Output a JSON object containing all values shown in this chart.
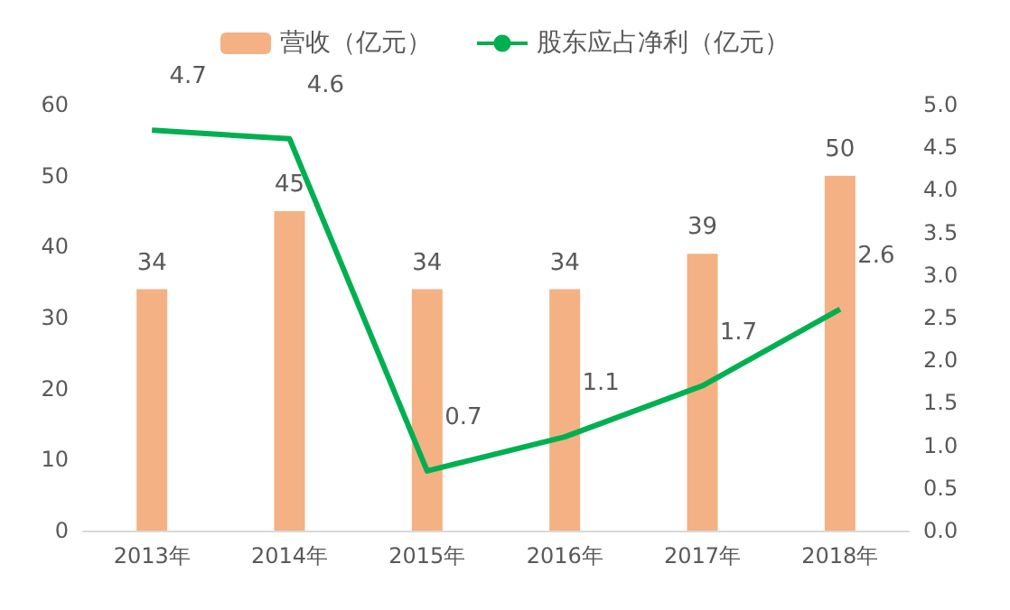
{
  "chart_data": {
    "type": "bar",
    "categories": [
      "2013年",
      "2014年",
      "2015年",
      "2016年",
      "2017年",
      "2018年"
    ],
    "series": [
      {
        "name": "营收（亿元）",
        "color": "#f4b183",
        "values": [
          34,
          45,
          34,
          34,
          39,
          50
        ]
      },
      {
        "name": "股东应占净利（亿元）",
        "type": "line",
        "axis": "y2",
        "color": "#00b050",
        "values": [
          4.7,
          4.6,
          0.7,
          1.1,
          1.7,
          2.6
        ]
      }
    ],
    "ylim": [
      0,
      60
    ],
    "yticks": [
      0,
      10,
      20,
      30,
      40,
      50,
      60
    ],
    "y2lim": [
      0,
      5
    ],
    "y2ticks": [
      {
        "value": 0,
        "label": "0.0"
      },
      {
        "value": 0.5,
        "label": "0.5"
      },
      {
        "value": 1,
        "label": "1.0"
      },
      {
        "value": 1.5,
        "label": "1.5"
      },
      {
        "value": 2,
        "label": "2.0"
      },
      {
        "value": 2.5,
        "label": "2.5"
      },
      {
        "value": 3,
        "label": "3.0"
      },
      {
        "value": 3.5,
        "label": "3.5"
      },
      {
        "value": 4,
        "label": "4.0"
      },
      {
        "value": 4.5,
        "label": "4.5"
      },
      {
        "value": 5,
        "label": "5.0"
      }
    ],
    "legend": "top",
    "grid": false,
    "marker": "none",
    "line_style": "solid",
    "data_labels": true
  }
}
